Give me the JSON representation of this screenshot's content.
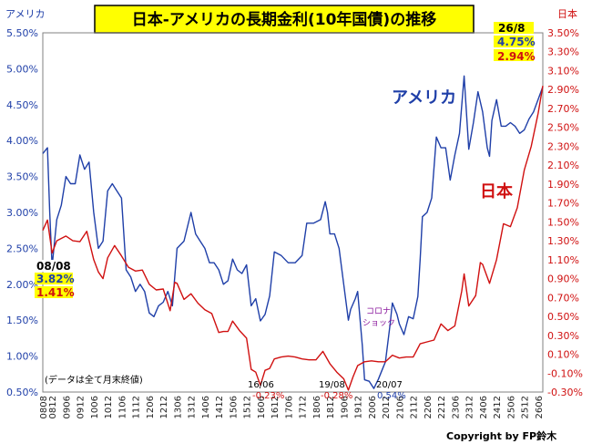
{
  "chart_data": {
    "type": "line",
    "title": "日本-アメリカの長期金利(10年国債)の推移",
    "y_left_label": "アメリカ",
    "y_right_label": "日本",
    "y_left_ticks": [
      "5.50%",
      "5.00%",
      "4.50%",
      "4.00%",
      "3.50%",
      "3.00%",
      "2.50%",
      "2.00%",
      "1.50%",
      "1.00%",
      "0.50%"
    ],
    "y_right_ticks": [
      "3.50%",
      "3.30%",
      "3.10%",
      "2.90%",
      "2.70%",
      "2.50%",
      "2.30%",
      "2.10%",
      "1.90%",
      "1.70%",
      "1.50%",
      "1.30%",
      "1.10%",
      "0.90%",
      "0.70%",
      "0.50%",
      "0.30%",
      "0.10%",
      "-0.10%",
      "-0.30%"
    ],
    "y_left_range": [
      0.5,
      5.5
    ],
    "y_right_range": [
      -0.3,
      3.5
    ],
    "x_tick_labels": [
      "0808",
      "0812",
      "0906",
      "0912",
      "1006",
      "1012",
      "1106",
      "1112",
      "1206",
      "1212",
      "1306",
      "1312",
      "1406",
      "1412",
      "1506",
      "1512",
      "1606",
      "1612",
      "1706",
      "1712",
      "1806",
      "1812",
      "1906",
      "1912",
      "2006",
      "2012",
      "2106",
      "2112",
      "2206",
      "2212",
      "2306",
      "2312",
      "2406",
      "2412",
      "2506",
      "2512",
      "2606"
    ],
    "series": [
      {
        "name": "アメリカ",
        "color": "#1f3fa8",
        "points": [
          [
            "0808",
            3.82
          ],
          [
            "0810",
            3.9
          ],
          [
            "0811",
            3.0
          ],
          [
            "0812",
            2.25
          ],
          [
            "0902",
            2.9
          ],
          [
            "0904",
            3.1
          ],
          [
            "0906",
            3.5
          ],
          [
            "0908",
            3.4
          ],
          [
            "0910",
            3.4
          ],
          [
            "0912",
            3.8
          ],
          [
            "1002",
            3.6
          ],
          [
            "1004",
            3.7
          ],
          [
            "1006",
            3.0
          ],
          [
            "1008",
            2.5
          ],
          [
            "1010",
            2.6
          ],
          [
            "1012",
            3.3
          ],
          [
            "1102",
            3.4
          ],
          [
            "1104",
            3.3
          ],
          [
            "1106",
            3.2
          ],
          [
            "1108",
            2.2
          ],
          [
            "1110",
            2.1
          ],
          [
            "1112",
            1.9
          ],
          [
            "1202",
            2.0
          ],
          [
            "1204",
            1.9
          ],
          [
            "1206",
            1.6
          ],
          [
            "1208",
            1.55
          ],
          [
            "1210",
            1.7
          ],
          [
            "1212",
            1.75
          ],
          [
            "1302",
            1.9
          ],
          [
            "1304",
            1.7
          ],
          [
            "1306",
            2.5
          ],
          [
            "1309",
            2.6
          ],
          [
            "1312",
            3.0
          ],
          [
            "1402",
            2.7
          ],
          [
            "1404",
            2.6
          ],
          [
            "1406",
            2.5
          ],
          [
            "1408",
            2.3
          ],
          [
            "1410",
            2.3
          ],
          [
            "1412",
            2.2
          ],
          [
            "1502",
            2.0
          ],
          [
            "1504",
            2.05
          ],
          [
            "1506",
            2.35
          ],
          [
            "1508",
            2.2
          ],
          [
            "1510",
            2.15
          ],
          [
            "1512",
            2.27
          ],
          [
            "1602",
            1.7
          ],
          [
            "1604",
            1.8
          ],
          [
            "1606",
            1.49
          ],
          [
            "1608",
            1.58
          ],
          [
            "1610",
            1.84
          ],
          [
            "1612",
            2.45
          ],
          [
            "1703",
            2.4
          ],
          [
            "1706",
            2.3
          ],
          [
            "1709",
            2.3
          ],
          [
            "1712",
            2.4
          ],
          [
            "1802",
            2.85
          ],
          [
            "1805",
            2.85
          ],
          [
            "1808",
            2.9
          ],
          [
            "1810",
            3.15
          ],
          [
            "1811",
            3.0
          ],
          [
            "1812",
            2.7
          ],
          [
            "1902",
            2.7
          ],
          [
            "1904",
            2.5
          ],
          [
            "1906",
            2.0
          ],
          [
            "1908",
            1.5
          ],
          [
            "1909",
            1.65
          ],
          [
            "1911",
            1.8
          ],
          [
            "1912",
            1.9
          ],
          [
            "2002",
            1.15
          ],
          [
            "2003",
            0.67
          ],
          [
            "2005",
            0.65
          ],
          [
            "2007",
            0.55
          ],
          [
            "2009",
            0.68
          ],
          [
            "2011",
            0.84
          ],
          [
            "2012",
            0.92
          ],
          [
            "2102",
            1.44
          ],
          [
            "2103",
            1.74
          ],
          [
            "2105",
            1.58
          ],
          [
            "2106",
            1.45
          ],
          [
            "2108",
            1.3
          ],
          [
            "2110",
            1.55
          ],
          [
            "2112",
            1.52
          ],
          [
            "2202",
            1.83
          ],
          [
            "2203",
            2.34
          ],
          [
            "2204",
            2.94
          ],
          [
            "2206",
            3.0
          ],
          [
            "2208",
            3.2
          ],
          [
            "2210",
            4.05
          ],
          [
            "2212",
            3.9
          ],
          [
            "2302",
            3.9
          ],
          [
            "2304",
            3.45
          ],
          [
            "2306",
            3.8
          ],
          [
            "2308",
            4.1
          ],
          [
            "2310",
            4.9
          ],
          [
            "2312",
            3.88
          ],
          [
            "2402",
            4.25
          ],
          [
            "2404",
            4.68
          ],
          [
            "2406",
            4.4
          ],
          [
            "2408",
            3.9
          ],
          [
            "2409",
            3.78
          ],
          [
            "2410",
            4.28
          ],
          [
            "2412",
            4.57
          ],
          [
            "2502",
            4.2
          ],
          [
            "2504",
            4.2
          ],
          [
            "2506",
            4.25
          ],
          [
            "2508",
            4.2
          ],
          [
            "2510",
            4.1
          ],
          [
            "2512",
            4.15
          ],
          [
            "2602",
            4.3
          ],
          [
            "2604",
            4.4
          ],
          [
            "2608",
            4.75
          ]
        ]
      },
      {
        "name": "日本",
        "color": "#d01010",
        "points": [
          [
            "0808",
            1.41
          ],
          [
            "0810",
            1.52
          ],
          [
            "0812",
            1.17
          ],
          [
            "0902",
            1.3
          ],
          [
            "0906",
            1.35
          ],
          [
            "0909",
            1.3
          ],
          [
            "0912",
            1.29
          ],
          [
            "1003",
            1.4
          ],
          [
            "1006",
            1.1
          ],
          [
            "1008",
            0.97
          ],
          [
            "1010",
            0.9
          ],
          [
            "1012",
            1.12
          ],
          [
            "1103",
            1.25
          ],
          [
            "1106",
            1.14
          ],
          [
            "1109",
            1.02
          ],
          [
            "1112",
            0.98
          ],
          [
            "1203",
            0.99
          ],
          [
            "1206",
            0.84
          ],
          [
            "1209",
            0.78
          ],
          [
            "1212",
            0.79
          ],
          [
            "1303",
            0.56
          ],
          [
            "1305",
            0.86
          ],
          [
            "1306",
            0.85
          ],
          [
            "1309",
            0.68
          ],
          [
            "1312",
            0.74
          ],
          [
            "1403",
            0.64
          ],
          [
            "1406",
            0.57
          ],
          [
            "1409",
            0.53
          ],
          [
            "1412",
            0.33
          ],
          [
            "1502",
            0.34
          ],
          [
            "1504",
            0.34
          ],
          [
            "1506",
            0.45
          ],
          [
            "1509",
            0.35
          ],
          [
            "1512",
            0.27
          ],
          [
            "1602",
            -0.06
          ],
          [
            "1604",
            -0.09
          ],
          [
            "1606",
            -0.23
          ],
          [
            "1608",
            -0.07
          ],
          [
            "1610",
            -0.05
          ],
          [
            "1612",
            0.05
          ],
          [
            "1703",
            0.07
          ],
          [
            "1706",
            0.08
          ],
          [
            "1709",
            0.07
          ],
          [
            "1712",
            0.05
          ],
          [
            "1803",
            0.04
          ],
          [
            "1806",
            0.04
          ],
          [
            "1809",
            0.13
          ],
          [
            "1812",
            0.0
          ],
          [
            "1903",
            -0.09
          ],
          [
            "1906",
            -0.16
          ],
          [
            "1908",
            -0.28
          ],
          [
            "1910",
            -0.14
          ],
          [
            "1912",
            -0.02
          ],
          [
            "2003",
            0.02
          ],
          [
            "2006",
            0.03
          ],
          [
            "2009",
            0.02
          ],
          [
            "2012",
            0.02
          ],
          [
            "2103",
            0.09
          ],
          [
            "2106",
            0.06
          ],
          [
            "2109",
            0.07
          ],
          [
            "2112",
            0.07
          ],
          [
            "2203",
            0.21
          ],
          [
            "2206",
            0.23
          ],
          [
            "2209",
            0.25
          ],
          [
            "2212",
            0.42
          ],
          [
            "2303",
            0.35
          ],
          [
            "2306",
            0.4
          ],
          [
            "2309",
            0.77
          ],
          [
            "2310",
            0.95
          ],
          [
            "2312",
            0.61
          ],
          [
            "2403",
            0.72
          ],
          [
            "2405",
            1.07
          ],
          [
            "2406",
            1.05
          ],
          [
            "2409",
            0.85
          ],
          [
            "2412",
            1.1
          ],
          [
            "2503",
            1.48
          ],
          [
            "2506",
            1.45
          ],
          [
            "2509",
            1.65
          ],
          [
            "2512",
            2.05
          ],
          [
            "2603",
            2.3
          ],
          [
            "2606",
            2.65
          ],
          [
            "2608",
            2.94
          ]
        ]
      }
    ],
    "series_labels": {
      "us": "アメリカ",
      "jp": "日本"
    },
    "start_box": {
      "date": "08/08",
      "us": "3.82%",
      "jp": "1.41%"
    },
    "end_box": {
      "date": "26/8",
      "us": "4.75%",
      "jp": "2.94%"
    },
    "annotations": [
      {
        "date": "16/06",
        "value": "-0.23%"
      },
      {
        "date": "19/08",
        "value": "-0.28%"
      },
      {
        "date": "20/07",
        "value": "0.54%"
      }
    ],
    "corona_label": [
      "コロナ",
      "ショック"
    ],
    "note": "(データは全て月末終値)",
    "copyright": "Copyright by FP鈴木",
    "grid": false
  }
}
